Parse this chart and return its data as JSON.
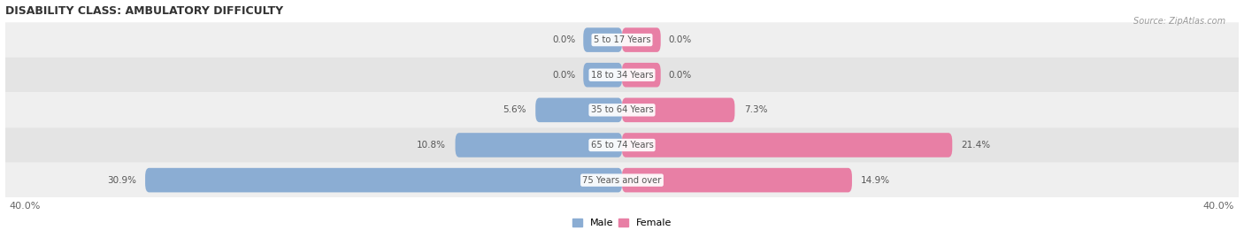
{
  "title": "DISABILITY CLASS: AMBULATORY DIFFICULTY",
  "source": "Source: ZipAtlas.com",
  "categories": [
    "5 to 17 Years",
    "18 to 34 Years",
    "35 to 64 Years",
    "65 to 74 Years",
    "75 Years and over"
  ],
  "male_values": [
    0.0,
    0.0,
    5.6,
    10.8,
    30.9
  ],
  "female_values": [
    0.0,
    0.0,
    7.3,
    21.4,
    14.9
  ],
  "max_val": 40.0,
  "male_color": "#8BADD3",
  "female_color": "#E87FA5",
  "row_bg_colors": [
    "#EFEFEF",
    "#E4E4E4"
  ],
  "label_color": "#555555",
  "title_color": "#333333",
  "axis_label_color": "#666666",
  "background_color": "#FFFFFF",
  "zero_stub": 2.5
}
